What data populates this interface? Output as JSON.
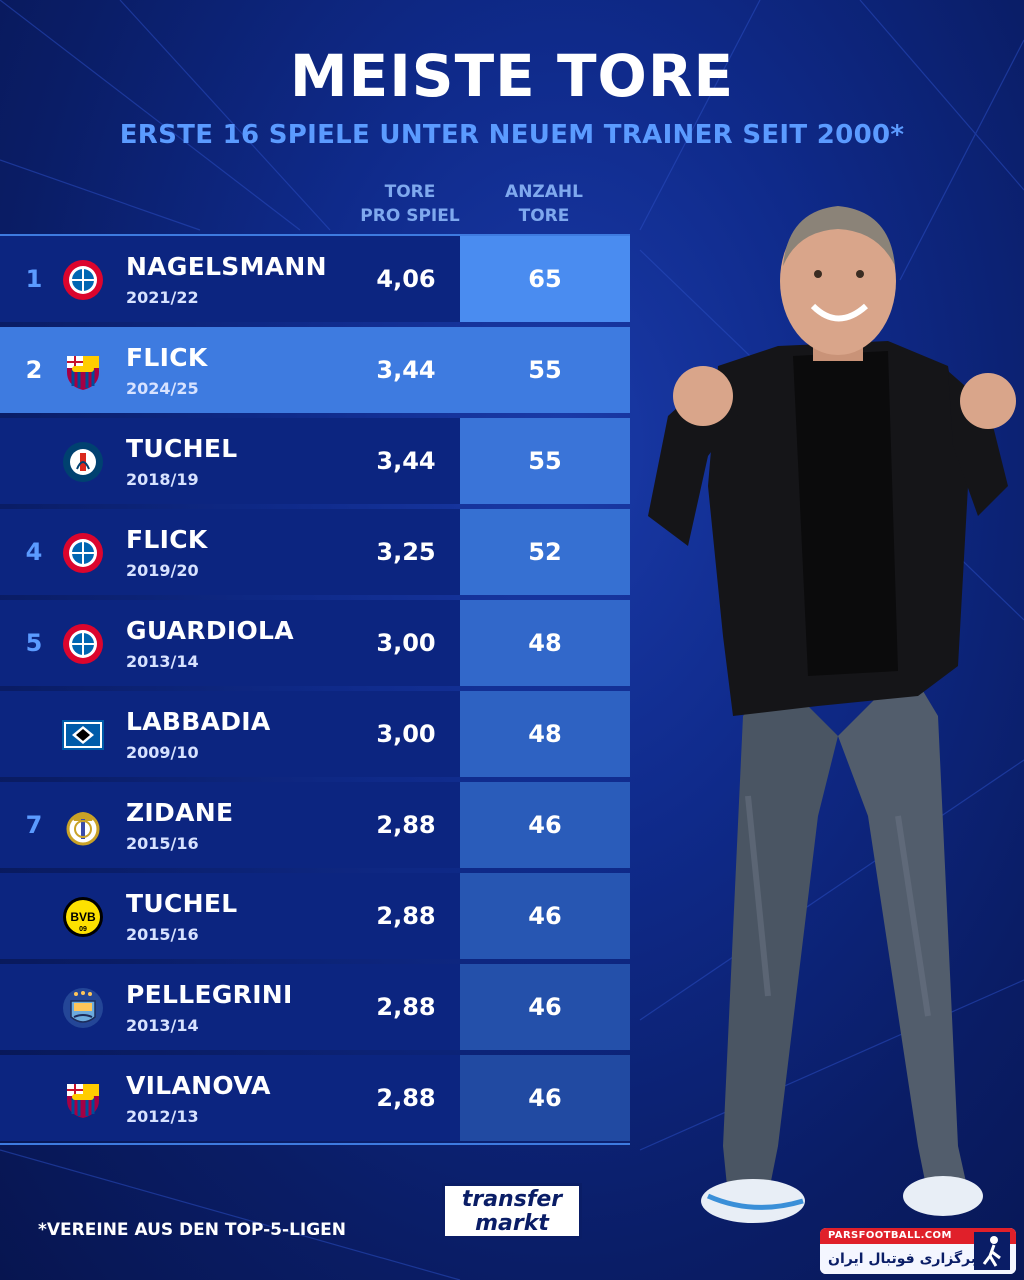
{
  "header": {
    "title": "MEISTE TORE",
    "subtitle": "ERSTE 16 SPIELE UNTER NEUEM TRAINER SEIT 2000*"
  },
  "columns": {
    "goals_per_game_line1": "TORE",
    "goals_per_game_line2": "PRO SPIEL",
    "total_goals_line1": "ANZAHL",
    "total_goals_line2": "TORE"
  },
  "rows": [
    {
      "rank": "1",
      "logo": "fc-bayern-icon",
      "name": "NAGELSMANN",
      "season": "2021/22",
      "goals_per_game": "4,06",
      "goals": "65"
    },
    {
      "rank": "2",
      "logo": "fc-barcelona-icon",
      "name": "FLICK",
      "season": "2024/25",
      "goals_per_game": "3,44",
      "goals": "55",
      "highlight": true
    },
    {
      "rank": "",
      "logo": "psg-icon",
      "name": "TUCHEL",
      "season": "2018/19",
      "goals_per_game": "3,44",
      "goals": "55"
    },
    {
      "rank": "4",
      "logo": "fc-bayern-icon",
      "name": "FLICK",
      "season": "2019/20",
      "goals_per_game": "3,25",
      "goals": "52"
    },
    {
      "rank": "5",
      "logo": "fc-bayern-icon",
      "name": "GUARDIOLA",
      "season": "2013/14",
      "goals_per_game": "3,00",
      "goals": "48"
    },
    {
      "rank": "",
      "logo": "hsv-icon",
      "name": "LABBADIA",
      "season": "2009/10",
      "goals_per_game": "3,00",
      "goals": "48"
    },
    {
      "rank": "7",
      "logo": "real-madrid-icon",
      "name": "ZIDANE",
      "season": "2015/16",
      "goals_per_game": "2,88",
      "goals": "46"
    },
    {
      "rank": "",
      "logo": "bvb-icon",
      "name": "TUCHEL",
      "season": "2015/16",
      "goals_per_game": "2,88",
      "goals": "46"
    },
    {
      "rank": "",
      "logo": "man-city-icon",
      "name": "PELLEGRINI",
      "season": "2013/14",
      "goals_per_game": "2,88",
      "goals": "46"
    },
    {
      "rank": "",
      "logo": "fc-barcelona-icon",
      "name": "VILANOVA",
      "season": "2012/13",
      "goals_per_game": "2,88",
      "goals": "46"
    }
  ],
  "goals_column_colors": [
    "#4a8cf0",
    "#3e7be0",
    "#3a74d8",
    "#3670d2",
    "#3268ca",
    "#2e62c2",
    "#2a5cba",
    "#2756b2",
    "#2450aa",
    "#214aa2"
  ],
  "footer": {
    "footnote": "*VEREINE AUS DEN TOP-5-LIGEN",
    "logo_line1": "transfer",
    "logo_line2": "markt"
  },
  "watermark": {
    "url": "PARSFOOTBALL.COM",
    "text": "خبرگزاری فوتبال ایران"
  },
  "colors": {
    "accent": "#5b9bff",
    "row_bg": "#0c2580",
    "highlight": "#3e7be0"
  }
}
